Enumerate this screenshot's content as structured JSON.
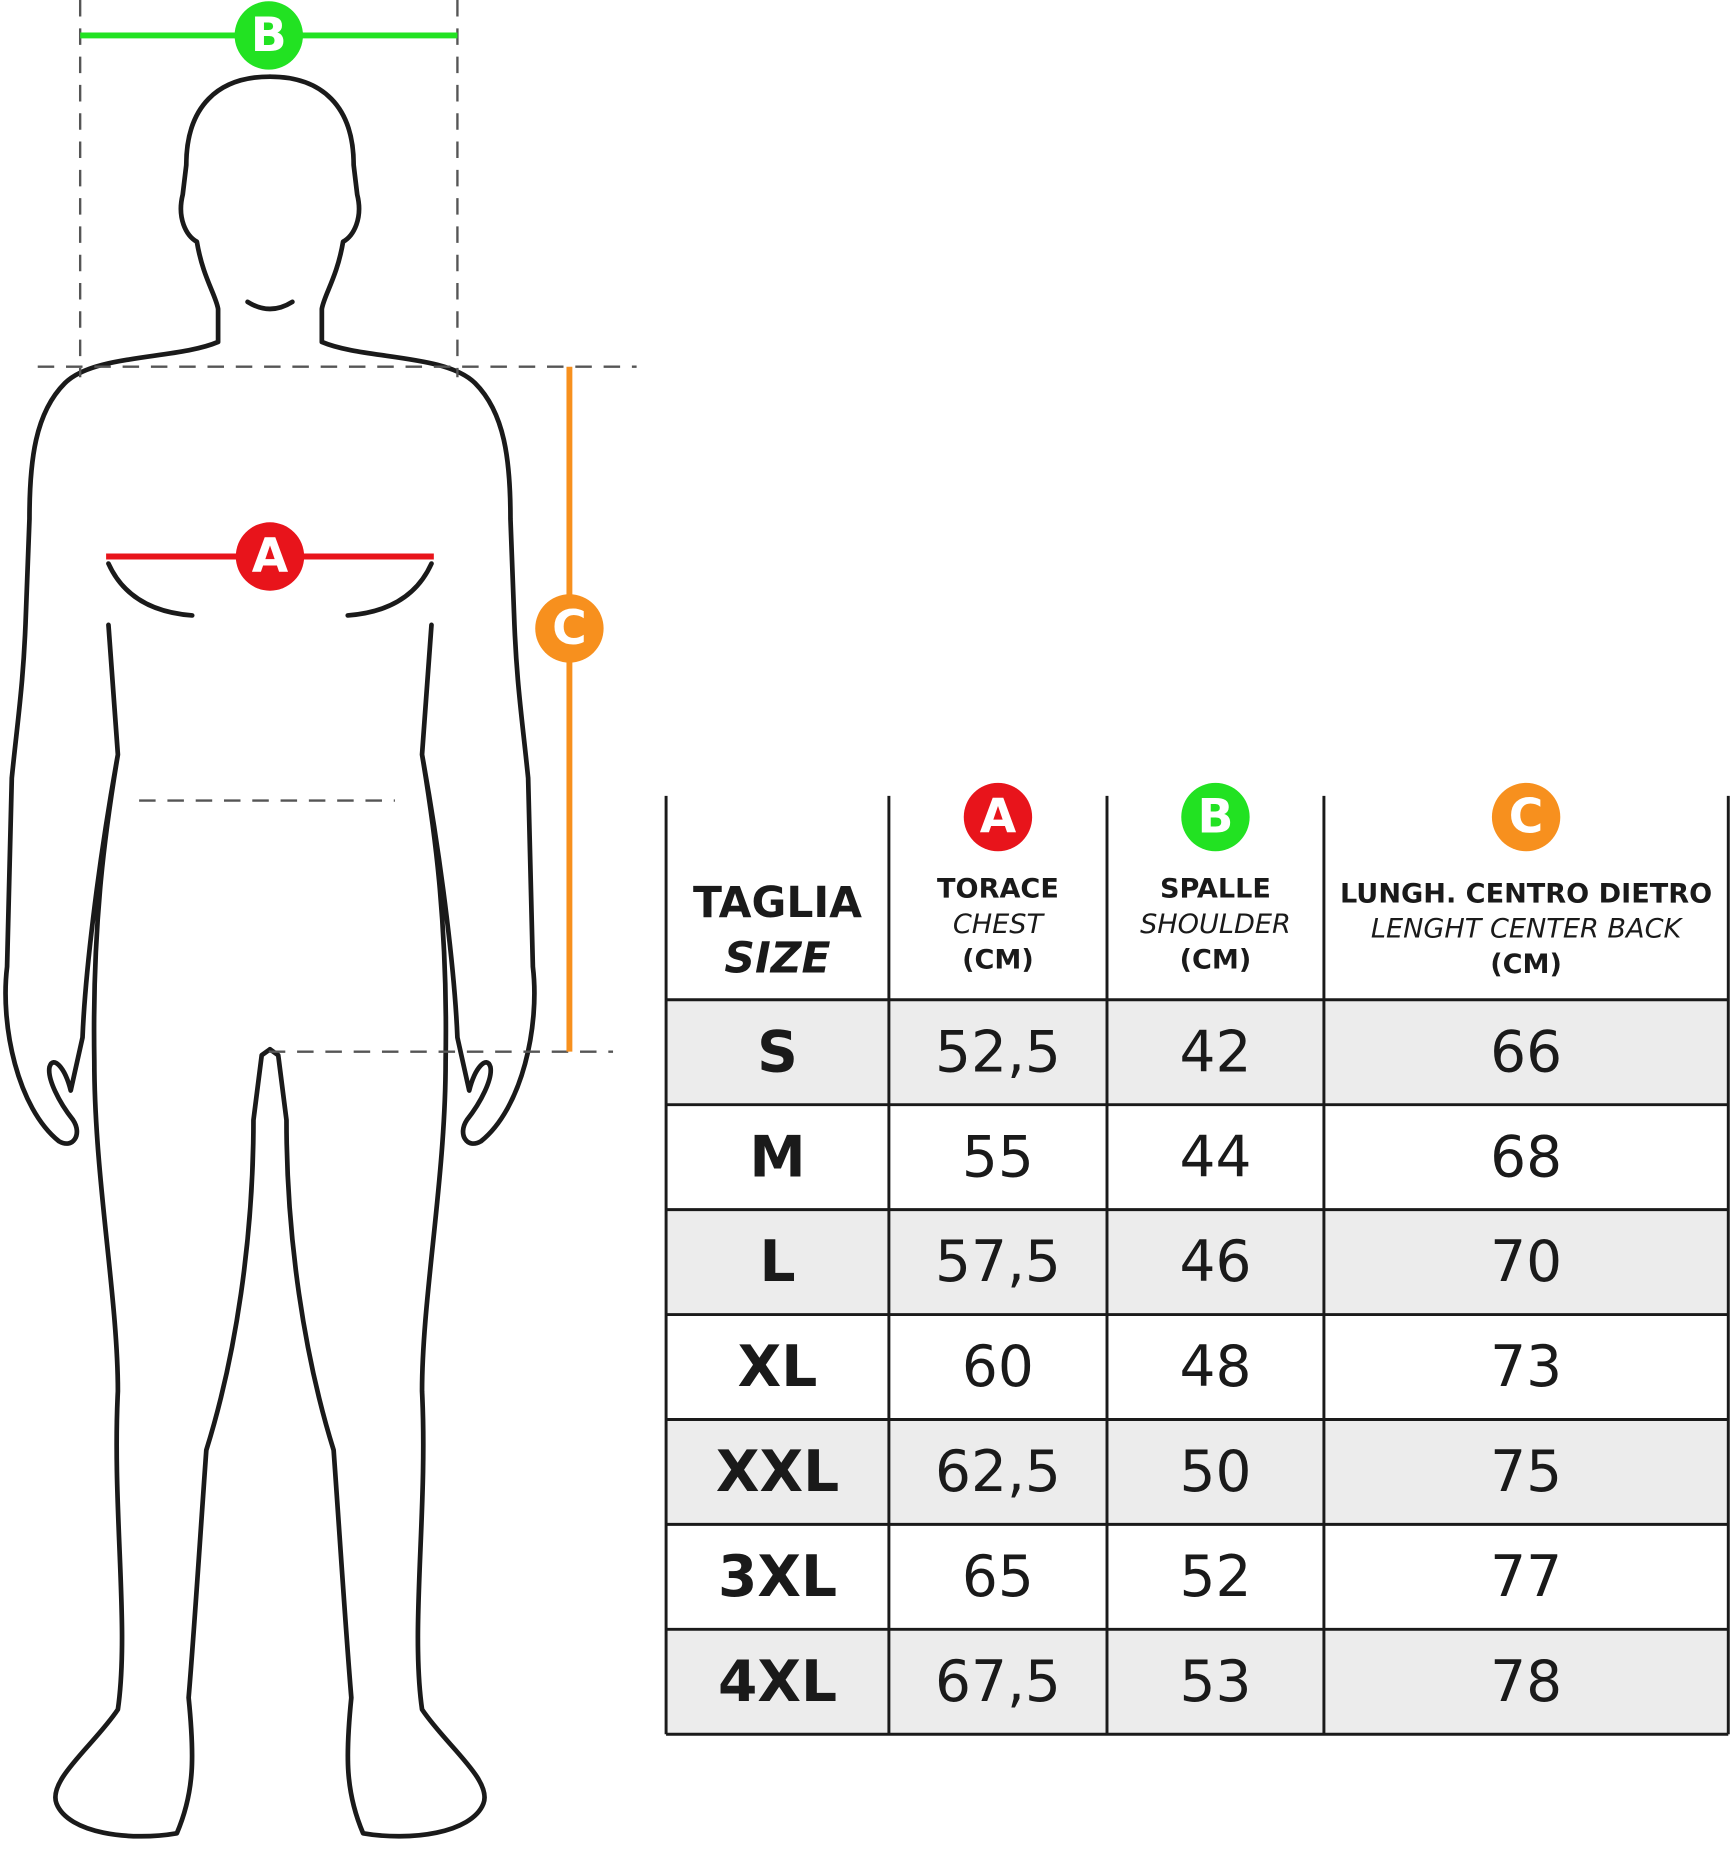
{
  "table": {
    "header": {
      "size": [
        "TAGLIA",
        "SIZE"
      ],
      "columns": [
        {
          "marker": "A",
          "color": "#e8141b",
          "lines": [
            "TORACE",
            "CHEST",
            "(CM)"
          ]
        },
        {
          "marker": "B",
          "color": "#22e222",
          "lines": [
            "SPALLE",
            "SHOULDER",
            "(CM)"
          ]
        },
        {
          "marker": "C",
          "color": "#f7901e",
          "lines": [
            "LUNGH. CENTRO DIETRO",
            "LENGHT CENTER BACK",
            "(CM)"
          ]
        }
      ]
    },
    "rows": [
      [
        "S",
        "52,5",
        "42",
        "66"
      ],
      [
        "M",
        "55",
        "44",
        "68"
      ],
      [
        "L",
        "57,5",
        "46",
        "70"
      ],
      [
        "XL",
        "60",
        "48",
        "73"
      ],
      [
        "XXL",
        "62,5",
        "50",
        "75"
      ],
      [
        "3XL",
        "65",
        "52",
        "77"
      ],
      [
        "4XL",
        "67,5",
        "53",
        "78"
      ]
    ]
  }
}
